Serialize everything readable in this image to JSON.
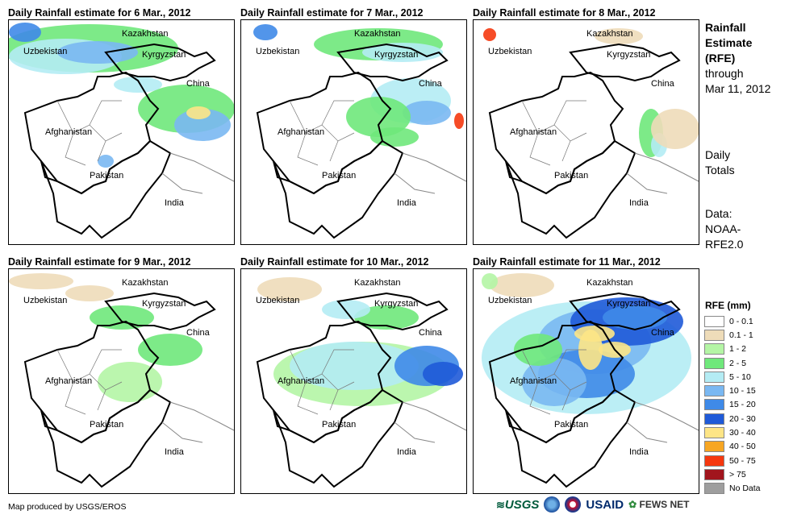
{
  "panels": [
    {
      "title": "Daily Rainfall estimate for 6 Mar., 2012",
      "intensity": "moderate-north"
    },
    {
      "title": "Daily Rainfall estimate for 7 Mar., 2012",
      "intensity": "moderate-east"
    },
    {
      "title": "Daily Rainfall estimate for 8 Mar., 2012",
      "intensity": "light"
    },
    {
      "title": "Daily Rainfall estimate for 9 Mar., 2012",
      "intensity": "light"
    },
    {
      "title": "Daily Rainfall estimate for 10 Mar., 2012",
      "intensity": "moderate"
    },
    {
      "title": "Daily Rainfall estimate for 11 Mar., 2012",
      "intensity": "heavy"
    }
  ],
  "country_labels": {
    "kazakhstan": "Kazakhstan",
    "uzbekistan": "Uzbekistan",
    "kyrgyzstan": "Kyrgyzstan",
    "china": "China",
    "afghanistan": "Afghanistan",
    "pakistan": "Pakistan",
    "india": "India"
  },
  "sidebar": {
    "title_line1": "Rainfall",
    "title_line2": "Estimate",
    "title_line3": "(RFE)",
    "through": "through",
    "date": "Mar 11, 2012",
    "totals_line1": "Daily",
    "totals_line2": "Totals",
    "data_line1": "Data:",
    "data_line2": "NOAA-",
    "data_line3": "RFE2.0"
  },
  "legend": {
    "title": "RFE (mm)",
    "items": [
      {
        "label": "0 - 0.1",
        "color": "#ffffff"
      },
      {
        "label": "0.1 - 1",
        "color": "#eedcb9"
      },
      {
        "label": "1 - 2",
        "color": "#b4f5a5"
      },
      {
        "label": "2 - 5",
        "color": "#6fe87b"
      },
      {
        "label": "5 - 10",
        "color": "#b4ecf4"
      },
      {
        "label": "10 - 15",
        "color": "#7ab8f2"
      },
      {
        "label": "15 - 20",
        "color": "#3f8ae8"
      },
      {
        "label": "20 - 30",
        "color": "#1f5ad8"
      },
      {
        "label": "30 - 40",
        "color": "#fde586"
      },
      {
        "label": "40 - 50",
        "color": "#f7a623"
      },
      {
        "label": "50 - 75",
        "color": "#f5380f"
      },
      {
        "label": "> 75",
        "color": "#a1151d"
      },
      {
        "label": "No Data",
        "color": "#9e9e9e"
      }
    ]
  },
  "footer": {
    "credit": "Map produced by USGS/EROS",
    "usgs": "USGS",
    "usaid": "USAID",
    "fews": "FEWS NET"
  }
}
